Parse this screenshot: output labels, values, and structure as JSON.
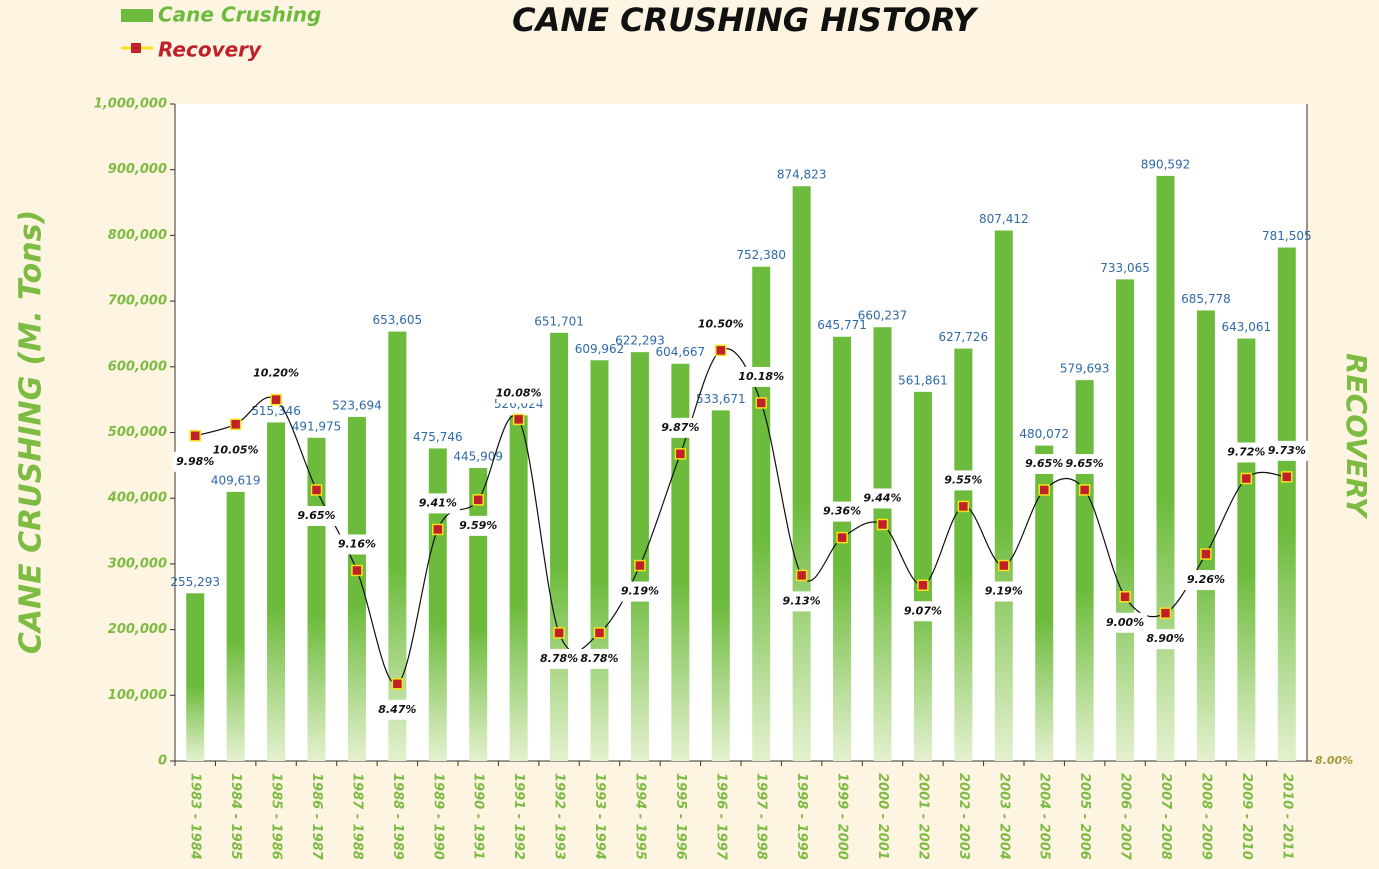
{
  "chart_data": {
    "type": "bar",
    "title": "CANE CRUSHING HISTORY",
    "y_label": "CANE CRUSHING (M. Tons)",
    "y2_label": "RECOVERY",
    "legend": "upper left",
    "categories": [
      "1983 - 1984",
      "1984 - 1985",
      "1985 - 1986",
      "1986 - 1987",
      "1987 - 1988",
      "1988 - 1989",
      "1989 - 1990",
      "1990 - 1991",
      "1991 - 1992",
      "1992 - 1993",
      "1993 - 1994",
      "1994 - 1995",
      "1995 - 1996",
      "1996 - 1997",
      "1997 - 1998",
      "1998 - 1999",
      "1999 - 2000",
      "2000 - 2001",
      "2001 - 2002",
      "2002 - 2003",
      "2003 - 2004",
      "2004 - 2005",
      "2005 - 2006",
      "2006 - 2007",
      "2007 - 2008",
      "2008 - 2009",
      "2009 - 2010",
      "2010 - 2011"
    ],
    "series": [
      {
        "name": "Cane Crushing",
        "type": "bar",
        "color": "#6cbb3c",
        "values": [
          255293,
          409619,
          515346,
          491975,
          523694,
          653605,
          475746,
          445909,
          526024,
          651701,
          609962,
          622293,
          604667,
          533671,
          752380,
          874823,
          645771,
          660237,
          561861,
          627726,
          807412,
          480072,
          579693,
          733065,
          890592,
          685778,
          643061,
          781505
        ],
        "value_labels": [
          "255,293",
          "409,619",
          "515,346",
          "491,975",
          "523,694",
          "653,605",
          "475,746",
          "445,909",
          "526,024",
          "651,701",
          "609,962",
          "622,293",
          "604,667",
          "533,671",
          "752,380",
          "874,823",
          "645,771",
          "660,237",
          "561,861",
          "627,726",
          "807,412",
          "480,072",
          "579,693",
          "733,065",
          "890,592",
          "685,778",
          "643,061",
          "781,505"
        ]
      },
      {
        "name": "Recovery",
        "type": "line",
        "axis": "y2",
        "color": "#c0202a",
        "values": [
          9.98,
          10.05,
          10.2,
          9.65,
          9.16,
          8.47,
          9.41,
          9.59,
          10.08,
          8.78,
          8.78,
          9.19,
          9.87,
          10.5,
          10.18,
          9.13,
          9.36,
          9.44,
          9.07,
          9.55,
          9.19,
          9.65,
          9.65,
          9.0,
          8.9,
          9.26,
          9.72,
          9.73
        ],
        "value_labels": [
          "9.98%",
          "10.05%",
          "10.20%",
          "9.65%",
          "9.16%",
          "8.47%",
          "9.41%",
          "9.59%",
          "10.08%",
          "8.78%",
          "8.78%",
          "9.19%",
          "9.87%",
          "10.50%",
          "10.18%",
          "9.13%",
          "9.36%",
          "9.44%",
          "9.07%",
          "9.55%",
          "9.19%",
          "9.65%",
          "9.65%",
          "9.00%",
          "8.90%",
          "9.26%",
          "9.72%",
          "9.73%"
        ]
      }
    ],
    "ylim": [
      0,
      1000000
    ],
    "yticks": [
      0,
      {
        "value": 100000,
        "label": "100,000"
      },
      {
        "value": 200000,
        "label": "200,000"
      },
      {
        "value": 300000,
        "label": "300,000"
      },
      {
        "value": 400000,
        "label": "400,000"
      },
      {
        "value": 500000,
        "label": "500,000"
      },
      {
        "value": 600000,
        "label": "600,000"
      },
      {
        "value": 700000,
        "label": "700,000"
      },
      {
        "value": 800000,
        "label": "800,000"
      },
      {
        "value": 900000,
        "label": "900,000"
      },
      {
        "value": 1000000,
        "label": "1,000,000"
      }
    ],
    "y2lim": [
      8,
      12
    ],
    "y2ticks": [
      {
        "value": 8,
        "label": "8.00%"
      }
    ]
  }
}
